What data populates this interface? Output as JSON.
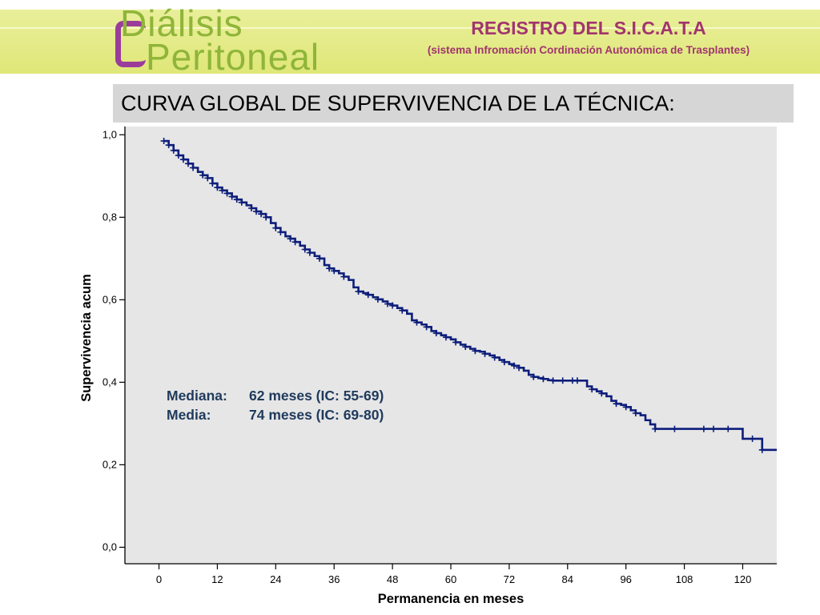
{
  "header": {
    "logo_line1": "Diálisis",
    "logo_line2": "Peritoneal",
    "registry_title": "REGISTRO DEL S.I.C.A.T.A",
    "registry_subtitle": "(sistema Infromación Cordinación Autonómica de Trasplantes)"
  },
  "slide_title": "CURVA GLOBAL DE SUPERVIVENCIA DE LA TÉCNICA:",
  "colors": {
    "header_band": "#e3ea88",
    "logo_green": "#8fb539",
    "logo_purple": "#9b3c9b",
    "registry_text": "#a1356e",
    "title_bar": "#d6d6d6",
    "plot_background": "#e6e6e6",
    "curve": "#0d1e7a",
    "annotation_text": "#1f3a5c"
  },
  "annotation": {
    "mediana_label": "Mediana:",
    "mediana_value": "62 meses (IC: 55-69)",
    "media_label": "Media:",
    "media_value": "74 meses (IC: 69-80)"
  },
  "chart_data": {
    "type": "line",
    "style": "kaplan-meier step curve with censoring ticks",
    "xlabel": "Permanencia en meses",
    "ylabel": "Supervivencia acum",
    "xlim": [
      -7,
      127
    ],
    "ylim": [
      -0.04,
      1.02
    ],
    "xticks": [
      0,
      12,
      24,
      36,
      48,
      60,
      72,
      84,
      96,
      108,
      120
    ],
    "xtick_labels": [
      "0",
      "12",
      "24",
      "36",
      "48",
      "60",
      "72",
      "84",
      "96",
      "108",
      "120"
    ],
    "yticks": [
      0.0,
      0.2,
      0.4,
      0.6,
      0.8,
      1.0
    ],
    "ytick_labels": [
      "0,0",
      "0,2",
      "0,4",
      "0,6",
      "0,8",
      "1,0"
    ],
    "grid": false,
    "legend": "none",
    "series": [
      {
        "points": [
          [
            1,
            0.985
          ],
          [
            2,
            0.975
          ],
          [
            3,
            0.962
          ],
          [
            4,
            0.95
          ],
          [
            5,
            0.94
          ],
          [
            6,
            0.93
          ],
          [
            7,
            0.92
          ],
          [
            8,
            0.91
          ],
          [
            9,
            0.902
          ],
          [
            10,
            0.895
          ],
          [
            11,
            0.882
          ],
          [
            12,
            0.872
          ],
          [
            13,
            0.865
          ],
          [
            14,
            0.858
          ],
          [
            15,
            0.85
          ],
          [
            16,
            0.843
          ],
          [
            17,
            0.836
          ],
          [
            18,
            0.829
          ],
          [
            19,
            0.822
          ],
          [
            20,
            0.814
          ],
          [
            21,
            0.808
          ],
          [
            22,
            0.8
          ],
          [
            23,
            0.786
          ],
          [
            24,
            0.774
          ],
          [
            25,
            0.764
          ],
          [
            26,
            0.754
          ],
          [
            27,
            0.748
          ],
          [
            28,
            0.74
          ],
          [
            29,
            0.731
          ],
          [
            30,
            0.722
          ],
          [
            31,
            0.714
          ],
          [
            32,
            0.706
          ],
          [
            33,
            0.7
          ],
          [
            34,
            0.684
          ],
          [
            35,
            0.676
          ],
          [
            36,
            0.67
          ],
          [
            37,
            0.664
          ],
          [
            38,
            0.656
          ],
          [
            39,
            0.648
          ],
          [
            40,
            0.63
          ],
          [
            41,
            0.62
          ],
          [
            42,
            0.616
          ],
          [
            43,
            0.612
          ],
          [
            44,
            0.606
          ],
          [
            45,
            0.601
          ],
          [
            46,
            0.596
          ],
          [
            47,
            0.59
          ],
          [
            48,
            0.586
          ],
          [
            49,
            0.58
          ],
          [
            50,
            0.574
          ],
          [
            51,
            0.566
          ],
          [
            52,
            0.55
          ],
          [
            53,
            0.545
          ],
          [
            54,
            0.54
          ],
          [
            55,
            0.534
          ],
          [
            56,
            0.524
          ],
          [
            57,
            0.519
          ],
          [
            58,
            0.514
          ],
          [
            59,
            0.509
          ],
          [
            60,
            0.504
          ],
          [
            61,
            0.497
          ],
          [
            62,
            0.491
          ],
          [
            63,
            0.486
          ],
          [
            64,
            0.481
          ],
          [
            65,
            0.476
          ],
          [
            66,
            0.474
          ],
          [
            67,
            0.469
          ],
          [
            68,
            0.465
          ],
          [
            69,
            0.46
          ],
          [
            70,
            0.454
          ],
          [
            71,
            0.449
          ],
          [
            72,
            0.444
          ],
          [
            73,
            0.44
          ],
          [
            74,
            0.435
          ],
          [
            75,
            0.428
          ],
          [
            76,
            0.418
          ],
          [
            77,
            0.413
          ],
          [
            78,
            0.41
          ],
          [
            79,
            0.408
          ],
          [
            80,
            0.405
          ],
          [
            81,
            0.404
          ],
          [
            88,
            0.39
          ],
          [
            89,
            0.383
          ],
          [
            90,
            0.378
          ],
          [
            91,
            0.373
          ],
          [
            92,
            0.366
          ],
          [
            93,
            0.355
          ],
          [
            94,
            0.348
          ],
          [
            95,
            0.345
          ],
          [
            96,
            0.34
          ],
          [
            97,
            0.332
          ],
          [
            98,
            0.325
          ],
          [
            99,
            0.32
          ],
          [
            100,
            0.308
          ],
          [
            101,
            0.298
          ],
          [
            102,
            0.287
          ],
          [
            120,
            0.263
          ],
          [
            124,
            0.236
          ],
          [
            127,
            0.236
          ]
        ],
        "censored": [
          [
            1,
            0.985
          ],
          [
            2,
            0.975
          ],
          [
            3,
            0.962
          ],
          [
            4,
            0.95
          ],
          [
            5,
            0.94
          ],
          [
            6,
            0.93
          ],
          [
            7,
            0.92
          ],
          [
            9,
            0.902
          ],
          [
            10,
            0.895
          ],
          [
            11,
            0.882
          ],
          [
            12,
            0.872
          ],
          [
            13,
            0.865
          ],
          [
            14,
            0.858
          ],
          [
            15,
            0.85
          ],
          [
            16,
            0.843
          ],
          [
            17,
            0.836
          ],
          [
            19,
            0.822
          ],
          [
            20,
            0.814
          ],
          [
            21,
            0.808
          ],
          [
            22,
            0.8
          ],
          [
            24,
            0.774
          ],
          [
            25,
            0.764
          ],
          [
            27,
            0.748
          ],
          [
            28,
            0.74
          ],
          [
            30,
            0.722
          ],
          [
            31,
            0.714
          ],
          [
            33,
            0.7
          ],
          [
            35,
            0.676
          ],
          [
            36,
            0.67
          ],
          [
            38,
            0.656
          ],
          [
            41,
            0.62
          ],
          [
            43,
            0.612
          ],
          [
            45,
            0.601
          ],
          [
            47,
            0.59
          ],
          [
            48,
            0.586
          ],
          [
            50,
            0.574
          ],
          [
            53,
            0.545
          ],
          [
            55,
            0.534
          ],
          [
            57,
            0.519
          ],
          [
            59,
            0.509
          ],
          [
            61,
            0.497
          ],
          [
            63,
            0.486
          ],
          [
            65,
            0.476
          ],
          [
            67,
            0.469
          ],
          [
            69,
            0.46
          ],
          [
            71,
            0.449
          ],
          [
            73,
            0.44
          ],
          [
            74,
            0.435
          ],
          [
            77,
            0.413
          ],
          [
            79,
            0.408
          ],
          [
            81,
            0.404
          ],
          [
            83,
            0.404
          ],
          [
            85,
            0.404
          ],
          [
            86,
            0.404
          ],
          [
            89,
            0.383
          ],
          [
            91,
            0.373
          ],
          [
            94,
            0.348
          ],
          [
            96,
            0.34
          ],
          [
            98,
            0.325
          ],
          [
            102,
            0.287
          ],
          [
            106,
            0.287
          ],
          [
            112,
            0.287
          ],
          [
            114,
            0.287
          ],
          [
            117,
            0.287
          ],
          [
            122,
            0.263
          ],
          [
            124,
            0.236
          ]
        ]
      }
    ]
  }
}
